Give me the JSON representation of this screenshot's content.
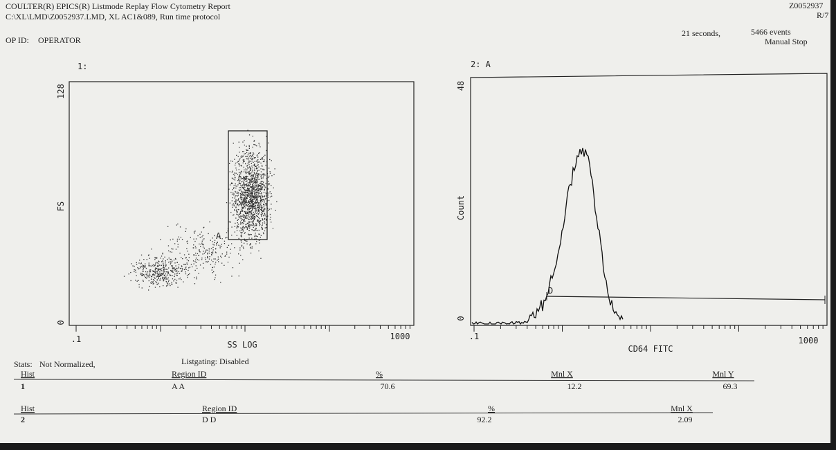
{
  "header": {
    "line1": "COULTER(R) EPICS(R) Listmode Replay Flow Cytometry Report",
    "line2": "C:\\XL\\LMD\\Z0052937.LMD,   XL AC1&089, Run time protocol",
    "op_id_label": "OP ID:",
    "operator": "OPERATOR",
    "file_id": "Z0052937",
    "page": "R/7",
    "time": "21 seconds,",
    "events": "5466 events",
    "stop": "Manual Stop"
  },
  "plots": [
    {
      "label": "1:",
      "y_label": "FS",
      "x_label": "SS LOG",
      "y_top": "128",
      "y_bottom": "0",
      "x_left": ".1",
      "x_right": "1000",
      "region": "A"
    },
    {
      "label": "2: A",
      "y_label": "Count",
      "x_label": "CD64 FITC",
      "y_top": "48",
      "y_bottom": "0",
      "x_left": ".1",
      "x_right": "1000",
      "region": "D"
    }
  ],
  "stats": {
    "label": "Stats:",
    "normalized": "Not Normalized,",
    "listgating": "Listgating: Disabled",
    "tables": [
      {
        "headers": [
          "Hist",
          "Region  ID",
          "%",
          "Mnl X",
          "Mnl Y"
        ],
        "row": [
          "1",
          "A   A",
          "70.6",
          "12.2",
          "69.3"
        ]
      },
      {
        "headers": [
          "Hist",
          "Region  ID",
          "%",
          "Mnl X"
        ],
        "row": [
          "2",
          "D   D",
          "92.2",
          "2.09"
        ]
      }
    ]
  }
}
